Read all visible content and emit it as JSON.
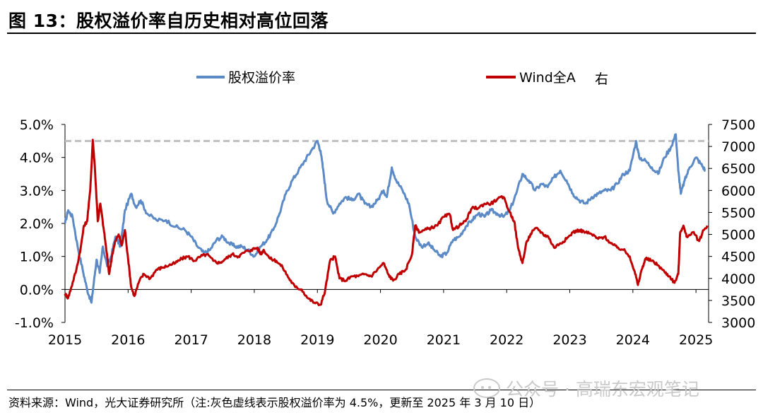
{
  "header": {
    "title": "图 13：股权溢价率自历史相对高位回落"
  },
  "footer": {
    "source": "资料来源：Wind，光大证券研究所（注:灰色虚线表示股权溢价率为 4.5%，更新至 2025 年 3 月 10 日）",
    "watermark": "公众号 · 高瑞东宏观笔记"
  },
  "colors": {
    "blue": "#5b8ac6",
    "red": "#c00000",
    "ref": "#bfbfbf"
  },
  "chart_data": {
    "type": "line",
    "title": "图 13：股权溢价率自历史相对高位回落",
    "x_ticks": [
      "2015",
      "2016",
      "2017",
      "2018",
      "2019",
      "2020",
      "2021",
      "2022",
      "2023",
      "2024",
      "2025"
    ],
    "x_range": [
      2015.0,
      2025.2
    ],
    "y_left": {
      "range": [
        -1.0,
        5.0
      ],
      "ticks": [
        "-1.0%",
        "0.0%",
        "1.0%",
        "2.0%",
        "3.0%",
        "4.0%",
        "5.0%"
      ]
    },
    "y_right": {
      "range": [
        3000,
        7500
      ],
      "ticks": [
        "3000",
        "3500",
        "4000",
        "4500",
        "5000",
        "5500",
        "6000",
        "6500",
        "7000",
        "7500"
      ]
    },
    "reference_line": {
      "value": 4.5,
      "axis": "left",
      "style": "dashed",
      "label": "股权溢价率 4.5%"
    },
    "legend": [
      {
        "name": "股权溢价率",
        "axis": "left",
        "color": "#5b8ac6"
      },
      {
        "name": "Wind全A",
        "suffix": "右",
        "axis": "right",
        "color": "#c00000"
      }
    ],
    "series": [
      {
        "name": "股权溢价率",
        "axis": "left",
        "points": [
          [
            2015.0,
            2.0
          ],
          [
            2015.05,
            2.4
          ],
          [
            2015.12,
            2.2
          ],
          [
            2015.2,
            1.3
          ],
          [
            2015.28,
            0.6
          ],
          [
            2015.35,
            0.0
          ],
          [
            2015.42,
            -0.4
          ],
          [
            2015.45,
            0.1
          ],
          [
            2015.5,
            0.9
          ],
          [
            2015.55,
            0.5
          ],
          [
            2015.6,
            1.3
          ],
          [
            2015.67,
            0.7
          ],
          [
            2015.73,
            1.0
          ],
          [
            2015.8,
            1.6
          ],
          [
            2015.88,
            1.3
          ],
          [
            2015.95,
            2.4
          ],
          [
            2016.05,
            2.9
          ],
          [
            2016.12,
            2.5
          ],
          [
            2016.2,
            2.7
          ],
          [
            2016.3,
            2.3
          ],
          [
            2016.45,
            2.1
          ],
          [
            2016.6,
            2.1
          ],
          [
            2016.75,
            1.9
          ],
          [
            2016.9,
            1.8
          ],
          [
            2017.0,
            1.6
          ],
          [
            2017.1,
            1.3
          ],
          [
            2017.2,
            1.1
          ],
          [
            2017.3,
            1.2
          ],
          [
            2017.4,
            1.5
          ],
          [
            2017.5,
            1.6
          ],
          [
            2017.6,
            1.4
          ],
          [
            2017.7,
            1.3
          ],
          [
            2017.8,
            1.3
          ],
          [
            2017.9,
            1.2
          ],
          [
            2018.0,
            1.0
          ],
          [
            2018.1,
            1.3
          ],
          [
            2018.2,
            1.5
          ],
          [
            2018.3,
            1.8
          ],
          [
            2018.4,
            2.3
          ],
          [
            2018.5,
            2.9
          ],
          [
            2018.6,
            3.3
          ],
          [
            2018.7,
            3.6
          ],
          [
            2018.8,
            3.9
          ],
          [
            2018.9,
            4.2
          ],
          [
            2019.0,
            4.5
          ],
          [
            2019.05,
            4.2
          ],
          [
            2019.1,
            3.5
          ],
          [
            2019.15,
            2.7
          ],
          [
            2019.25,
            2.3
          ],
          [
            2019.35,
            2.6
          ],
          [
            2019.45,
            2.8
          ],
          [
            2019.55,
            2.7
          ],
          [
            2019.65,
            2.9
          ],
          [
            2019.75,
            2.6
          ],
          [
            2019.85,
            2.5
          ],
          [
            2019.95,
            2.7
          ],
          [
            2020.05,
            3.0
          ],
          [
            2020.1,
            2.8
          ],
          [
            2020.18,
            3.7
          ],
          [
            2020.25,
            3.3
          ],
          [
            2020.35,
            3.0
          ],
          [
            2020.45,
            2.6
          ],
          [
            2020.55,
            1.6
          ],
          [
            2020.65,
            1.3
          ],
          [
            2020.75,
            1.4
          ],
          [
            2020.85,
            1.2
          ],
          [
            2020.95,
            1.0
          ],
          [
            2021.05,
            1.1
          ],
          [
            2021.15,
            1.5
          ],
          [
            2021.25,
            1.6
          ],
          [
            2021.35,
            1.9
          ],
          [
            2021.45,
            2.1
          ],
          [
            2021.55,
            2.3
          ],
          [
            2021.65,
            2.2
          ],
          [
            2021.75,
            2.4
          ],
          [
            2021.85,
            2.3
          ],
          [
            2021.95,
            2.2
          ],
          [
            2022.05,
            2.4
          ],
          [
            2022.15,
            2.9
          ],
          [
            2022.25,
            3.5
          ],
          [
            2022.35,
            3.3
          ],
          [
            2022.45,
            3.0
          ],
          [
            2022.55,
            3.2
          ],
          [
            2022.65,
            3.1
          ],
          [
            2022.75,
            3.4
          ],
          [
            2022.85,
            3.6
          ],
          [
            2022.95,
            3.3
          ],
          [
            2023.05,
            2.9
          ],
          [
            2023.15,
            2.7
          ],
          [
            2023.25,
            2.6
          ],
          [
            2023.35,
            2.8
          ],
          [
            2023.45,
            2.9
          ],
          [
            2023.55,
            3.0
          ],
          [
            2023.65,
            3.0
          ],
          [
            2023.75,
            3.2
          ],
          [
            2023.85,
            3.5
          ],
          [
            2023.95,
            3.6
          ],
          [
            2024.05,
            4.5
          ],
          [
            2024.1,
            4.0
          ],
          [
            2024.2,
            3.9
          ],
          [
            2024.3,
            3.7
          ],
          [
            2024.4,
            3.5
          ],
          [
            2024.5,
            4.0
          ],
          [
            2024.6,
            4.3
          ],
          [
            2024.68,
            4.7
          ],
          [
            2024.72,
            3.6
          ],
          [
            2024.76,
            2.9
          ],
          [
            2024.82,
            3.3
          ],
          [
            2024.9,
            3.7
          ],
          [
            2025.0,
            4.0
          ],
          [
            2025.08,
            3.8
          ],
          [
            2025.15,
            3.6
          ]
        ]
      },
      {
        "name": "Wind全A",
        "axis": "right",
        "points": [
          [
            2015.0,
            3650
          ],
          [
            2015.05,
            3560
          ],
          [
            2015.1,
            3800
          ],
          [
            2015.18,
            4200
          ],
          [
            2015.25,
            4700
          ],
          [
            2015.3,
            5200
          ],
          [
            2015.35,
            5300
          ],
          [
            2015.4,
            6000
          ],
          [
            2015.44,
            7150
          ],
          [
            2015.47,
            6600
          ],
          [
            2015.52,
            5300
          ],
          [
            2015.56,
            5700
          ],
          [
            2015.62,
            5050
          ],
          [
            2015.66,
            4600
          ],
          [
            2015.7,
            4100
          ],
          [
            2015.75,
            4550
          ],
          [
            2015.8,
            4850
          ],
          [
            2015.85,
            5000
          ],
          [
            2015.9,
            4750
          ],
          [
            2015.95,
            5100
          ],
          [
            2016.0,
            4450
          ],
          [
            2016.05,
            3800
          ],
          [
            2016.1,
            3600
          ],
          [
            2016.18,
            3950
          ],
          [
            2016.25,
            4100
          ],
          [
            2016.35,
            4000
          ],
          [
            2016.45,
            4200
          ],
          [
            2016.55,
            4250
          ],
          [
            2016.65,
            4300
          ],
          [
            2016.75,
            4350
          ],
          [
            2016.85,
            4450
          ],
          [
            2016.95,
            4500
          ],
          [
            2017.05,
            4400
          ],
          [
            2017.15,
            4500
          ],
          [
            2017.25,
            4550
          ],
          [
            2017.35,
            4400
          ],
          [
            2017.45,
            4350
          ],
          [
            2017.55,
            4450
          ],
          [
            2017.65,
            4550
          ],
          [
            2017.75,
            4500
          ],
          [
            2017.85,
            4600
          ],
          [
            2017.95,
            4650
          ],
          [
            2018.05,
            4700
          ],
          [
            2018.1,
            4550
          ],
          [
            2018.15,
            4650
          ],
          [
            2018.25,
            4450
          ],
          [
            2018.35,
            4400
          ],
          [
            2018.45,
            4250
          ],
          [
            2018.55,
            4000
          ],
          [
            2018.65,
            3800
          ],
          [
            2018.75,
            3750
          ],
          [
            2018.85,
            3550
          ],
          [
            2018.95,
            3450
          ],
          [
            2019.05,
            3400
          ],
          [
            2019.12,
            3700
          ],
          [
            2019.2,
            4400
          ],
          [
            2019.28,
            4500
          ],
          [
            2019.35,
            4000
          ],
          [
            2019.45,
            3950
          ],
          [
            2019.55,
            4050
          ],
          [
            2019.65,
            4050
          ],
          [
            2019.75,
            4100
          ],
          [
            2019.85,
            4050
          ],
          [
            2019.95,
            4200
          ],
          [
            2020.05,
            4350
          ],
          [
            2020.12,
            4100
          ],
          [
            2020.2,
            3950
          ],
          [
            2020.3,
            4100
          ],
          [
            2020.4,
            4200
          ],
          [
            2020.5,
            4550
          ],
          [
            2020.55,
            5200
          ],
          [
            2020.62,
            5050
          ],
          [
            2020.7,
            5100
          ],
          [
            2020.8,
            5150
          ],
          [
            2020.9,
            5200
          ],
          [
            2021.0,
            5400
          ],
          [
            2021.1,
            5450
          ],
          [
            2021.15,
            5100
          ],
          [
            2021.25,
            5200
          ],
          [
            2021.35,
            5300
          ],
          [
            2021.45,
            5600
          ],
          [
            2021.55,
            5600
          ],
          [
            2021.65,
            5700
          ],
          [
            2021.75,
            5700
          ],
          [
            2021.85,
            5800
          ],
          [
            2021.95,
            5850
          ],
          [
            2022.05,
            5500
          ],
          [
            2022.12,
            5300
          ],
          [
            2022.18,
            4700
          ],
          [
            2022.25,
            4350
          ],
          [
            2022.32,
            4850
          ],
          [
            2022.4,
            5050
          ],
          [
            2022.48,
            5150
          ],
          [
            2022.58,
            5000
          ],
          [
            2022.66,
            4950
          ],
          [
            2022.75,
            4700
          ],
          [
            2022.85,
            4800
          ],
          [
            2022.95,
            4900
          ],
          [
            2023.05,
            5050
          ],
          [
            2023.15,
            5100
          ],
          [
            2023.25,
            5050
          ],
          [
            2023.35,
            5000
          ],
          [
            2023.45,
            4900
          ],
          [
            2023.55,
            4950
          ],
          [
            2023.65,
            4800
          ],
          [
            2023.75,
            4700
          ],
          [
            2023.85,
            4650
          ],
          [
            2023.95,
            4500
          ],
          [
            2024.03,
            4150
          ],
          [
            2024.08,
            3850
          ],
          [
            2024.14,
            4200
          ],
          [
            2024.2,
            4450
          ],
          [
            2024.3,
            4400
          ],
          [
            2024.4,
            4300
          ],
          [
            2024.5,
            4150
          ],
          [
            2024.58,
            4050
          ],
          [
            2024.66,
            3900
          ],
          [
            2024.72,
            4100
          ],
          [
            2024.75,
            5050
          ],
          [
            2024.8,
            5200
          ],
          [
            2024.85,
            4950
          ],
          [
            2024.95,
            5050
          ],
          [
            2025.05,
            4850
          ],
          [
            2025.12,
            5100
          ],
          [
            2025.18,
            5200
          ]
        ]
      }
    ]
  }
}
